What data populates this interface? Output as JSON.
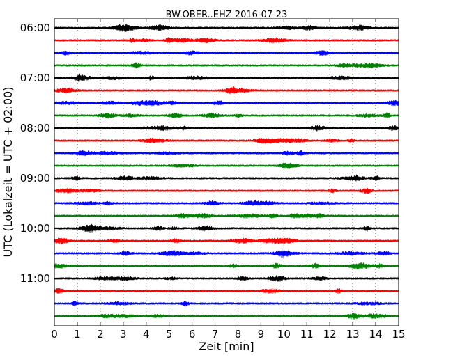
{
  "chart_data": {
    "type": "line",
    "title": "BW.OBER..EHZ 2016-07-23",
    "xlabel": "Zeit  [min]",
    "ylabel": "UTC (Lokalzeit = UTC + 02:00)",
    "xlim": [
      0,
      15
    ],
    "x_ticks": [
      "0",
      "1",
      "2",
      "3",
      "4",
      "5",
      "6",
      "7",
      "8",
      "9",
      "10",
      "11",
      "12",
      "13",
      "14",
      "15"
    ],
    "y_ticks": [
      "06:00",
      "07:00",
      "08:00",
      "09:00",
      "10:00",
      "11:00"
    ],
    "grid": "vertical-dotted",
    "trace_interval_min": 15,
    "trace_start": "06:00",
    "trace_count": 24,
    "trace_colors": [
      "#000000",
      "#ff0000",
      "#0000ff",
      "#008000"
    ]
  }
}
